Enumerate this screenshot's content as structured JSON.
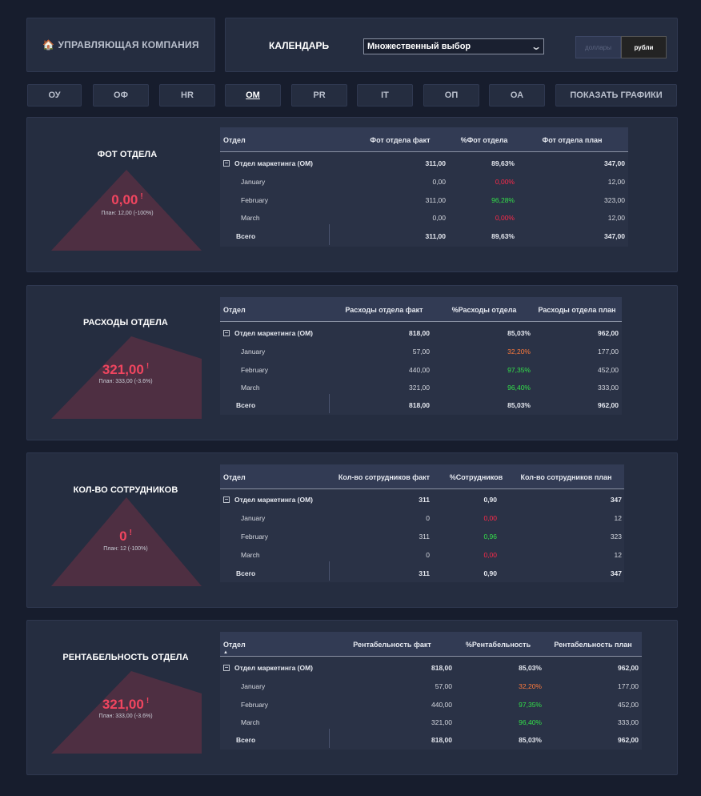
{
  "header": {
    "company_icon": "🏠",
    "company_label": "УПРАВЛЯЮЩАЯ КОМПАНИЯ",
    "calendar_label": "КАЛЕНДАРЬ",
    "calendar_select_value": "Множественный выбор",
    "currency": {
      "dollars": "доллары",
      "rubles": "рубли",
      "selected": "рубли"
    }
  },
  "tabs": [
    {
      "label": "ОУ",
      "active": false
    },
    {
      "label": "ОФ",
      "active": false
    },
    {
      "label": "HR",
      "active": false
    },
    {
      "label": "ОМ",
      "active": true
    },
    {
      "label": "PR",
      "active": false
    },
    {
      "label": "IT",
      "active": false
    },
    {
      "label": "ОП",
      "active": false
    },
    {
      "label": "ОА",
      "active": false
    },
    {
      "label": "ПОКАЗАТЬ ГРАФИКИ",
      "active": false
    }
  ],
  "colors": {
    "red": "#ff2a4a",
    "orange": "#ff7a3c",
    "green": "#33e04a",
    "kpi_value": "#f0455f",
    "shape": "#4e2f42"
  },
  "cards": [
    {
      "title": "ФОТ ОТДЕЛА",
      "kpi_value": "0,00",
      "kpi_flag": "!",
      "kpi_plan": "План: 12,00 (-100%)",
      "table": {
        "headers": [
          "Отдел",
          "Фот отдела факт",
          "%Фот отдела",
          "Фот отдела план"
        ],
        "group_label": "Отдел маркетинга (ОМ)",
        "group_values": [
          "311,00",
          "89,63%",
          "347,00"
        ],
        "rows": [
          {
            "label": "January",
            "fact": "0,00",
            "pct": "0,00%",
            "pct_color": "red",
            "plan": "12,00"
          },
          {
            "label": "February",
            "fact": "311,00",
            "pct": "96,28%",
            "pct_color": "green",
            "plan": "323,00"
          },
          {
            "label": "March",
            "fact": "0,00",
            "pct": "0,00%",
            "pct_color": "red",
            "plan": "12,00"
          }
        ],
        "total_label": "Всего",
        "total_values": [
          "311,00",
          "89,63%",
          "347,00"
        ]
      }
    },
    {
      "title": "РАСХОДЫ ОТДЕЛА",
      "kpi_value": "321,00",
      "kpi_flag": "!",
      "kpi_plan": "План: 333,00 (-3.6%)",
      "table": {
        "headers": [
          "Отдел",
          "Расходы отдела факт",
          "%Расходы отдела",
          "Расходы отдела план"
        ],
        "group_label": "Отдел маркетинга (ОМ)",
        "group_values": [
          "818,00",
          "85,03%",
          "962,00"
        ],
        "rows": [
          {
            "label": "January",
            "fact": "57,00",
            "pct": "32,20%",
            "pct_color": "orange",
            "plan": "177,00"
          },
          {
            "label": "February",
            "fact": "440,00",
            "pct": "97,35%",
            "pct_color": "green",
            "plan": "452,00"
          },
          {
            "label": "March",
            "fact": "321,00",
            "pct": "96,40%",
            "pct_color": "green",
            "plan": "333,00"
          }
        ],
        "total_label": "Всего",
        "total_values": [
          "818,00",
          "85,03%",
          "962,00"
        ]
      }
    },
    {
      "title": "КОЛ-ВО СОТРУДНИКОВ",
      "kpi_value": "0",
      "kpi_flag": "!",
      "kpi_plan": "План: 12 (-100%)",
      "table": {
        "headers": [
          "Отдел",
          "Кол-во сотрудников факт",
          "%Сотрудников",
          "Кол-во сотрудников план"
        ],
        "group_label": "Отдел маркетинга (ОМ)",
        "group_values": [
          "311",
          "0,90",
          "347"
        ],
        "rows": [
          {
            "label": "January",
            "fact": "0",
            "pct": "0,00",
            "pct_color": "red",
            "plan": "12"
          },
          {
            "label": "February",
            "fact": "311",
            "pct": "0,96",
            "pct_color": "green",
            "plan": "323"
          },
          {
            "label": "March",
            "fact": "0",
            "pct": "0,00",
            "pct_color": "red",
            "plan": "12"
          }
        ],
        "total_label": "Всего",
        "total_values": [
          "311",
          "0,90",
          "347"
        ]
      }
    },
    {
      "title": "РЕНТАБЕЛЬНОСТЬ ОТДЕЛА",
      "kpi_value": "321,00",
      "kpi_flag": "!",
      "kpi_plan": "План: 333,00 (-3.6%)",
      "table": {
        "headers": [
          "Отдел",
          "Рентабельность факт",
          "%Рентабельность",
          "Рентабельность план"
        ],
        "group_label": "Отдел маркетинга (ОМ)",
        "group_values": [
          "818,00",
          "85,03%",
          "962,00"
        ],
        "rows": [
          {
            "label": "January",
            "fact": "57,00",
            "pct": "32,20%",
            "pct_color": "orange",
            "plan": "177,00"
          },
          {
            "label": "February",
            "fact": "440,00",
            "pct": "97,35%",
            "pct_color": "green",
            "plan": "452,00"
          },
          {
            "label": "March",
            "fact": "321,00",
            "pct": "96,40%",
            "pct_color": "green",
            "plan": "333,00"
          }
        ],
        "total_label": "Всего",
        "total_values": [
          "818,00",
          "85,03%",
          "962,00"
        ]
      }
    }
  ]
}
